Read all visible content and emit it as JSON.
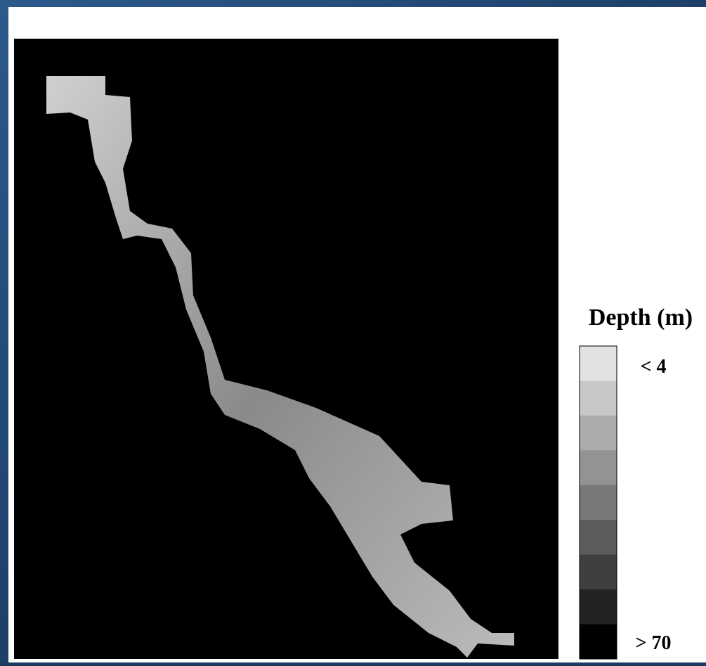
{
  "legend": {
    "title": "Depth (m)",
    "min_label": "< 4",
    "max_label": "> 70",
    "swatch_colors": [
      "#e2e2e2",
      "#c8c8c8",
      "#ababab",
      "#939393",
      "#787878",
      "#5c5c5c",
      "#3f3f3f",
      "#232323",
      "#000000"
    ]
  }
}
